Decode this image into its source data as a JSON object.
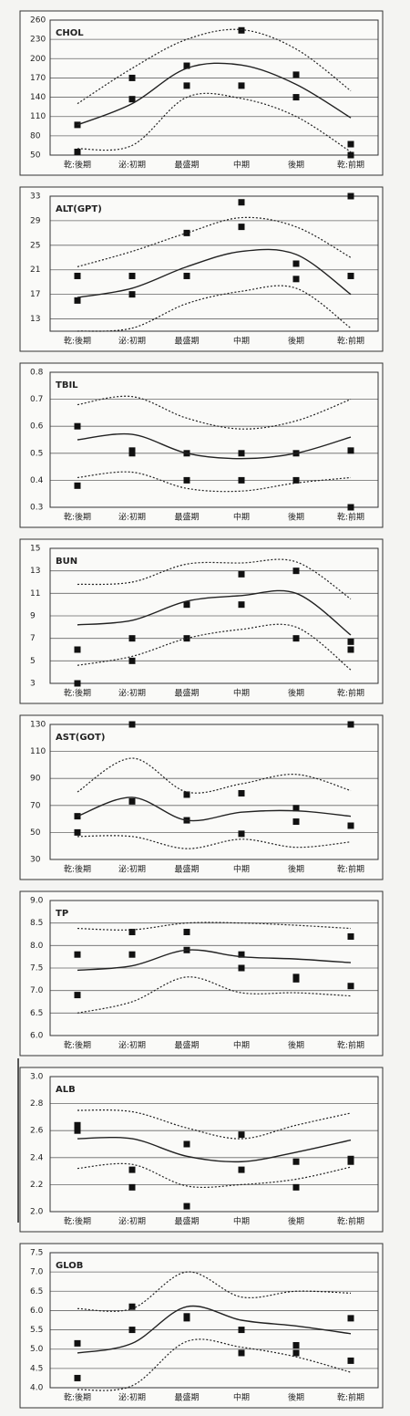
{
  "chart_data": [
    {
      "type": "line",
      "title": "CHOL",
      "categories": [
        "乾:後期",
        "泌:初期",
        "最盛期",
        "中期",
        "後期",
        "乾:前期"
      ],
      "ylim": [
        50,
        260
      ],
      "yticks": [
        50,
        80,
        110,
        140,
        170,
        200,
        230,
        260
      ],
      "grid": true,
      "series": [
        {
          "style": "points",
          "color": "#111111",
          "values": [
            97,
            170,
            189,
            244,
            175,
            67
          ]
        },
        {
          "style": "points",
          "color": "#111111",
          "values": [
            55,
            137,
            158,
            158,
            140,
            50
          ]
        },
        {
          "style": "solid",
          "color": "#222222",
          "values": [
            97,
            130,
            185,
            190,
            160,
            108
          ]
        },
        {
          "style": "dotted",
          "color": "#222222",
          "values": [
            130,
            185,
            230,
            245,
            215,
            150
          ]
        },
        {
          "style": "dotted",
          "color": "#222222",
          "values": [
            60,
            65,
            140,
            138,
            110,
            55
          ]
        }
      ]
    },
    {
      "type": "line",
      "title": "ALT(GPT)",
      "categories": [
        "乾:後期",
        "泌:初期",
        "最盛期",
        "中期",
        "後期",
        "乾:前期"
      ],
      "ylim": [
        11,
        33
      ],
      "yticks": [
        13,
        17,
        21,
        25,
        29,
        33
      ],
      "grid": true,
      "series": [
        {
          "style": "points",
          "color": "#111111",
          "values": [
            20,
            20,
            27,
            32,
            22,
            33
          ]
        },
        {
          "style": "points",
          "color": "#111111",
          "values": [
            16,
            17,
            20,
            28,
            19.5,
            20
          ]
        },
        {
          "style": "solid",
          "color": "#222222",
          "values": [
            16.5,
            18,
            21.5,
            24,
            23.5,
            17
          ]
        },
        {
          "style": "dotted",
          "color": "#222222",
          "values": [
            21.5,
            24,
            27,
            29.5,
            28,
            23
          ]
        },
        {
          "style": "dotted",
          "color": "#222222",
          "values": [
            11,
            11.5,
            15.5,
            17.5,
            18,
            11.5
          ]
        }
      ]
    },
    {
      "type": "line",
      "title": "TBIL",
      "categories": [
        "乾:後期",
        "泌:初期",
        "最盛期",
        "中期",
        "後期",
        "乾:前期"
      ],
      "ylim": [
        0.3,
        0.8
      ],
      "yticks": [
        0.3,
        0.4,
        0.5,
        0.6,
        0.7,
        0.8
      ],
      "grid": true,
      "series": [
        {
          "style": "points",
          "color": "#111111",
          "values": [
            0.6,
            0.51,
            0.5,
            0.5,
            0.5,
            0.51
          ]
        },
        {
          "style": "points",
          "color": "#111111",
          "values": [
            0.38,
            0.5,
            0.4,
            0.4,
            0.4,
            0.3
          ]
        },
        {
          "style": "solid",
          "color": "#222222",
          "values": [
            0.55,
            0.57,
            0.5,
            0.48,
            0.5,
            0.56
          ]
        },
        {
          "style": "dotted",
          "color": "#222222",
          "values": [
            0.68,
            0.71,
            0.63,
            0.59,
            0.62,
            0.7
          ]
        },
        {
          "style": "dotted",
          "color": "#222222",
          "values": [
            0.41,
            0.43,
            0.37,
            0.36,
            0.39,
            0.41
          ]
        }
      ]
    },
    {
      "type": "line",
      "title": "BUN",
      "categories": [
        "乾:後期",
        "泌:初期",
        "最盛期",
        "中期",
        "後期",
        "乾:前期"
      ],
      "ylim": [
        3,
        15
      ],
      "yticks": [
        3,
        5,
        7,
        9,
        11,
        13,
        15
      ],
      "grid": true,
      "series": [
        {
          "style": "points",
          "color": "#111111",
          "values": [
            6,
            7,
            10,
            12.7,
            13,
            6.7
          ]
        },
        {
          "style": "points",
          "color": "#111111",
          "values": [
            3,
            5,
            7,
            10,
            7,
            6
          ]
        },
        {
          "style": "solid",
          "color": "#222222",
          "values": [
            8.2,
            8.6,
            10.3,
            10.8,
            11,
            7.3
          ]
        },
        {
          "style": "dotted",
          "color": "#222222",
          "values": [
            11.8,
            12,
            13.6,
            13.7,
            13.8,
            10.5
          ]
        },
        {
          "style": "dotted",
          "color": "#222222",
          "values": [
            4.6,
            5.4,
            7,
            7.8,
            8,
            4.2
          ]
        }
      ]
    },
    {
      "type": "line",
      "title": "AST(GOT)",
      "categories": [
        "乾:後期",
        "泌:初期",
        "最盛期",
        "中期",
        "後期",
        "乾:前期"
      ],
      "ylim": [
        30,
        130
      ],
      "yticks": [
        30,
        50,
        70,
        90,
        110,
        130
      ],
      "grid": true,
      "series": [
        {
          "style": "points",
          "color": "#111111",
          "values": [
            62,
            130,
            78,
            79,
            68,
            130
          ]
        },
        {
          "style": "points",
          "color": "#111111",
          "values": [
            50,
            73,
            59,
            49,
            58,
            55
          ]
        },
        {
          "style": "solid",
          "color": "#222222",
          "values": [
            62,
            76,
            59,
            65,
            66,
            62
          ]
        },
        {
          "style": "dotted",
          "color": "#222222",
          "values": [
            80,
            105,
            80,
            86,
            93,
            81
          ]
        },
        {
          "style": "dotted",
          "color": "#222222",
          "values": [
            47,
            47,
            38,
            45,
            39,
            43
          ]
        }
      ]
    },
    {
      "type": "line",
      "title": "TP",
      "categories": [
        "乾:後期",
        "泌:初期",
        "最盛期",
        "中期",
        "後期",
        "乾:前期"
      ],
      "ylim": [
        6,
        9
      ],
      "yticks": [
        {
          "value": 6,
          "label": "6.0"
        },
        6.5,
        {
          "value": 7,
          "label": "7.0"
        },
        7.5,
        {
          "value": 8,
          "label": "8.0"
        },
        8.5,
        {
          "value": 9,
          "label": "9.0"
        }
      ],
      "grid": true,
      "series": [
        {
          "style": "points",
          "color": "#111111",
          "values": [
            7.8,
            8.3,
            8.3,
            7.8,
            7.3,
            8.2
          ]
        },
        {
          "style": "points",
          "color": "#111111",
          "values": [
            6.9,
            7.8,
            7.9,
            7.5,
            7.25,
            7.1
          ]
        },
        {
          "style": "solid",
          "color": "#222222",
          "values": [
            7.45,
            7.55,
            7.9,
            7.75,
            7.7,
            7.62
          ]
        },
        {
          "style": "dotted",
          "color": "#222222",
          "values": [
            8.38,
            8.35,
            8.5,
            8.5,
            8.45,
            8.38
          ]
        },
        {
          "style": "dotted",
          "color": "#222222",
          "values": [
            6.5,
            6.75,
            7.3,
            6.95,
            6.95,
            6.88
          ]
        }
      ]
    },
    {
      "type": "line",
      "title": "ALB",
      "categories": [
        "乾:後期",
        "泌:初期",
        "最盛期",
        "中期",
        "後期",
        "乾:前期"
      ],
      "ylim": [
        2,
        3
      ],
      "yticks": [
        {
          "value": 2,
          "label": "2.0"
        },
        2.2,
        2.4,
        2.6,
        2.8,
        {
          "value": 3,
          "label": "3.0"
        }
      ],
      "grid": true,
      "series": [
        {
          "style": "points",
          "color": "#111111",
          "values": [
            2.64,
            2.31,
            2.5,
            2.57,
            2.37,
            2.39
          ]
        },
        {
          "style": "points",
          "color": "#111111",
          "values": [
            2.6,
            2.18,
            2.04,
            2.31,
            2.18,
            2.37
          ]
        },
        {
          "style": "solid",
          "color": "#222222",
          "values": [
            2.54,
            2.54,
            2.41,
            2.37,
            2.44,
            2.53
          ]
        },
        {
          "style": "dotted",
          "color": "#222222",
          "values": [
            2.75,
            2.74,
            2.62,
            2.54,
            2.64,
            2.73
          ]
        },
        {
          "style": "dotted",
          "color": "#222222",
          "values": [
            2.32,
            2.35,
            2.19,
            2.2,
            2.24,
            2.33
          ]
        }
      ]
    },
    {
      "type": "line",
      "title": "GLOB",
      "categories": [
        "乾:後期",
        "泌:初期",
        "最盛期",
        "中期",
        "後期",
        "乾:前期"
      ],
      "ylim": [
        4,
        7.5
      ],
      "yticks": [
        {
          "value": 4,
          "label": "4.0"
        },
        4.5,
        {
          "value": 5,
          "label": "5.0"
        },
        5.5,
        {
          "value": 6,
          "label": "6.0"
        },
        6.5,
        {
          "value": 7,
          "label": "7.0"
        },
        7.5
      ],
      "grid": true,
      "series": [
        {
          "style": "points",
          "color": "#111111",
          "values": [
            5.15,
            6.1,
            5.85,
            5.5,
            5.1,
            5.8
          ]
        },
        {
          "style": "points",
          "color": "#111111",
          "values": [
            4.25,
            5.5,
            5.8,
            4.9,
            4.9,
            4.7
          ]
        },
        {
          "style": "solid",
          "color": "#222222",
          "values": [
            4.9,
            5.15,
            6.1,
            5.75,
            5.6,
            5.4
          ]
        },
        {
          "style": "dotted",
          "color": "#222222",
          "values": [
            6.05,
            6.05,
            7.0,
            6.35,
            6.5,
            6.45
          ]
        },
        {
          "style": "dotted",
          "color": "#222222",
          "values": [
            3.95,
            4.05,
            5.2,
            5.05,
            4.8,
            4.4
          ]
        }
      ]
    }
  ]
}
